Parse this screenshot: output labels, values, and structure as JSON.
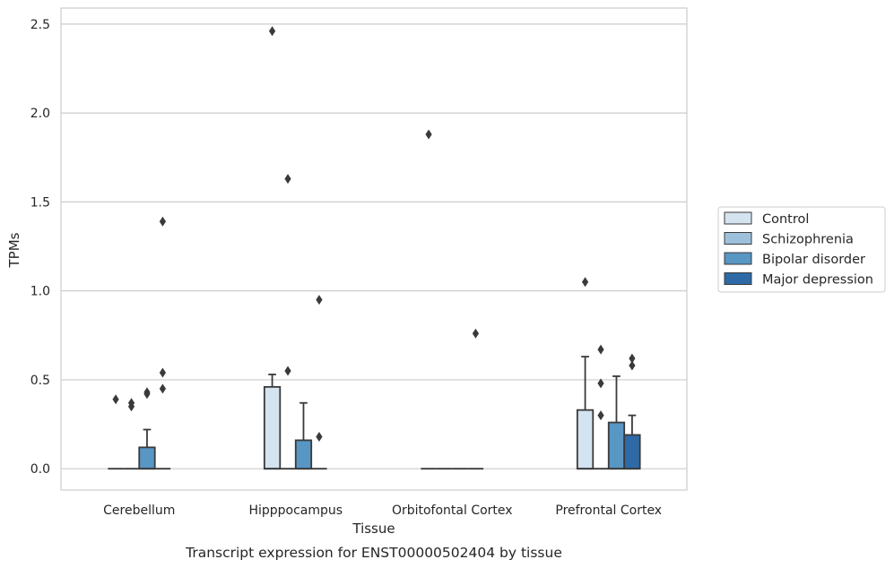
{
  "chart_data": {
    "type": "box",
    "title": "",
    "caption": "Transcript expression for ENST00000502404 by tissue",
    "xlabel": "Tissue",
    "ylabel": "TPMs",
    "ylim": [
      -0.12,
      2.59
    ],
    "yticks": [
      0.0,
      0.5,
      1.0,
      1.5,
      2.0,
      2.5
    ],
    "ytick_labels": [
      "0.0",
      "0.5",
      "1.0",
      "1.5",
      "2.0",
      "2.5"
    ],
    "grid": "horizontal",
    "legend_position": "right",
    "categories": [
      "Cerebellum",
      "Hipppocampus",
      "Orbitofontal Cortex",
      "Prefrontal Cortex"
    ],
    "series": [
      {
        "name": "Control",
        "color": "#d4e3f0",
        "boxes": [
          {
            "q1": 0,
            "median": 0,
            "q3": 0,
            "whisker_low": 0,
            "whisker_high": 0,
            "outliers": [
              0.39
            ]
          },
          {
            "q1": 0,
            "median": 0,
            "q3": 0.46,
            "whisker_low": 0,
            "whisker_high": 0.53,
            "outliers": [
              2.46
            ]
          },
          {
            "q1": 0,
            "median": 0,
            "q3": 0,
            "whisker_low": 0,
            "whisker_high": 0,
            "outliers": [
              1.88
            ]
          },
          {
            "q1": 0,
            "median": 0,
            "q3": 0.33,
            "whisker_low": 0,
            "whisker_high": 0.63,
            "outliers": [
              1.05
            ]
          }
        ]
      },
      {
        "name": "Schizophrenia",
        "color": "#9dc1dd",
        "boxes": [
          {
            "q1": 0,
            "median": 0,
            "q3": 0,
            "whisker_low": 0,
            "whisker_high": 0,
            "outliers": [
              0.35,
              0.37
            ]
          },
          {
            "q1": 0,
            "median": 0,
            "q3": 0,
            "whisker_low": 0,
            "whisker_high": 0,
            "outliers": [
              1.63,
              0.55
            ]
          },
          {
            "q1": 0,
            "median": 0,
            "q3": 0,
            "whisker_low": 0,
            "whisker_high": 0,
            "outliers": []
          },
          {
            "q1": 0,
            "median": 0,
            "q3": 0,
            "whisker_low": 0,
            "whisker_high": 0,
            "outliers": [
              0.67,
              0.48,
              0.3
            ]
          }
        ]
      },
      {
        "name": "Bipolar disorder",
        "color": "#5896c4",
        "boxes": [
          {
            "q1": 0,
            "median": 0,
            "q3": 0.12,
            "whisker_low": 0,
            "whisker_high": 0.22,
            "outliers": [
              0.42,
              0.43
            ]
          },
          {
            "q1": 0,
            "median": 0,
            "q3": 0.16,
            "whisker_low": 0,
            "whisker_high": 0.37,
            "outliers": []
          },
          {
            "q1": 0,
            "median": 0,
            "q3": 0,
            "whisker_low": 0,
            "whisker_high": 0,
            "outliers": []
          },
          {
            "q1": 0,
            "median": 0,
            "q3": 0.26,
            "whisker_low": 0,
            "whisker_high": 0.52,
            "outliers": []
          }
        ]
      },
      {
        "name": "Major depression",
        "color": "#2d6aa6",
        "boxes": [
          {
            "q1": 0,
            "median": 0,
            "q3": 0,
            "whisker_low": 0,
            "whisker_high": 0,
            "outliers": [
              1.39,
              0.54,
              0.45
            ]
          },
          {
            "q1": 0,
            "median": 0,
            "q3": 0,
            "whisker_low": 0,
            "whisker_high": 0,
            "outliers": [
              0.95,
              0.18
            ]
          },
          {
            "q1": 0,
            "median": 0,
            "q3": 0,
            "whisker_low": 0,
            "whisker_high": 0,
            "outliers": [
              0.76
            ]
          },
          {
            "q1": 0,
            "median": 0,
            "q3": 0.19,
            "whisker_low": 0,
            "whisker_high": 0.3,
            "outliers": [
              0.62,
              0.58
            ]
          }
        ]
      }
    ]
  }
}
